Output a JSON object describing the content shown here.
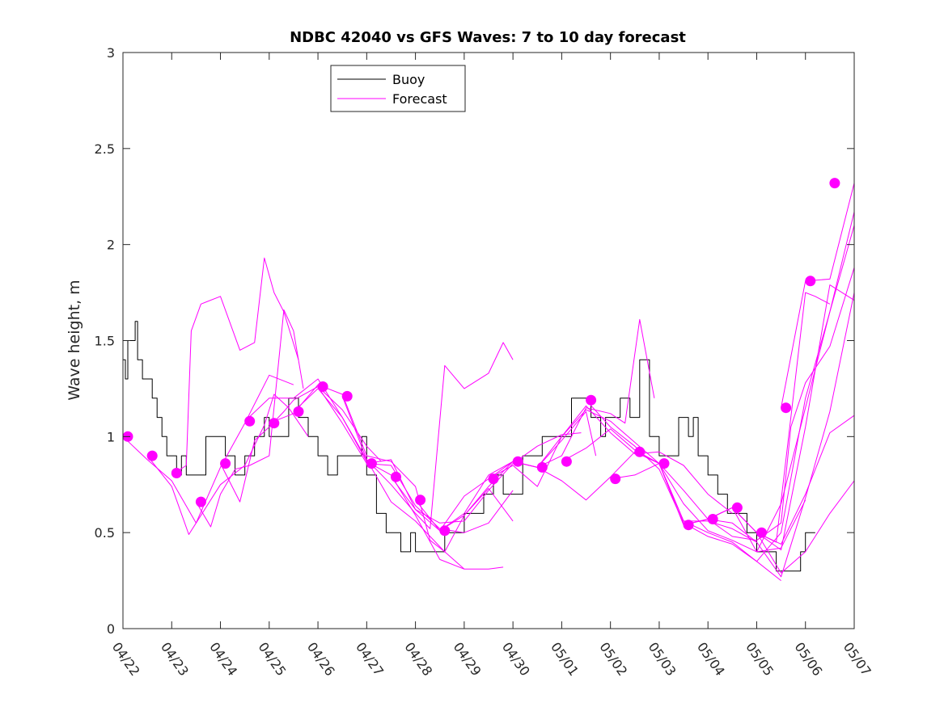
{
  "chart_data": {
    "type": "line",
    "title": "NDBC 42040 vs GFS Waves: 7 to 10 day forecast",
    "xlabel": "",
    "ylabel": "Wave height, m",
    "ylim": [
      0,
      3
    ],
    "yticks": [
      "0",
      "0.5",
      "1",
      "1.5",
      "2",
      "2.5",
      "3"
    ],
    "xlim": [
      0,
      15
    ],
    "xticks": [
      "04/22",
      "04/23",
      "04/24",
      "04/25",
      "04/26",
      "04/27",
      "04/28",
      "04/29",
      "04/30",
      "05/01",
      "05/02",
      "05/03",
      "05/04",
      "05/05",
      "05/06",
      "05/07"
    ],
    "x_unit": "days since 04/22",
    "grid": false,
    "legend_position": "top-left",
    "legend": [
      {
        "label": "Buoy",
        "color": "#000000"
      },
      {
        "label": "Forecast",
        "color": "#ff00ff"
      }
    ],
    "series": [
      {
        "name": "Buoy",
        "color": "#000000",
        "step": true,
        "x": [
          0,
          0.05,
          0.1,
          0.2,
          0.25,
          0.3,
          0.35,
          0.4,
          0.5,
          0.6,
          0.7,
          0.8,
          0.9,
          1.0,
          1.1,
          1.2,
          1.3,
          1.5,
          1.7,
          1.9,
          2.1,
          2.3,
          2.5,
          2.7,
          2.9,
          3.0,
          3.2,
          3.4,
          3.6,
          3.8,
          4.0,
          4.2,
          4.4,
          4.5,
          4.7,
          4.9,
          5.0,
          5.2,
          5.4,
          5.5,
          5.7,
          5.9,
          6.0,
          6.1,
          6.2,
          6.3,
          6.4,
          6.6,
          6.8,
          7.0,
          7.2,
          7.4,
          7.6,
          7.8,
          8.0,
          8.2,
          8.4,
          8.6,
          8.8,
          9.0,
          9.2,
          9.4,
          9.6,
          9.7,
          9.8,
          9.9,
          10.0,
          10.2,
          10.4,
          10.6,
          10.8,
          11.0,
          11.2,
          11.4,
          11.6,
          11.7,
          11.8,
          11.9,
          12.0,
          12.2,
          12.4,
          12.6,
          12.8,
          13.0,
          13.2,
          13.4,
          13.6,
          13.8,
          13.9,
          14.0,
          14.2
        ],
        "y": [
          1.4,
          1.3,
          1.5,
          1.5,
          1.6,
          1.4,
          1.4,
          1.3,
          1.3,
          1.2,
          1.1,
          1.0,
          0.9,
          0.9,
          0.8,
          0.9,
          0.8,
          0.8,
          1.0,
          1.0,
          0.9,
          0.8,
          0.9,
          1.0,
          1.1,
          1.0,
          1.0,
          1.2,
          1.1,
          1.0,
          0.9,
          0.8,
          0.9,
          0.9,
          0.9,
          1.0,
          0.8,
          0.6,
          0.5,
          0.5,
          0.4,
          0.5,
          0.4,
          0.4,
          0.4,
          0.4,
          0.4,
          0.5,
          0.5,
          0.6,
          0.6,
          0.7,
          0.8,
          0.7,
          0.7,
          0.9,
          0.9,
          1.0,
          1.0,
          1.0,
          1.2,
          1.2,
          1.1,
          1.1,
          1.0,
          1.1,
          1.1,
          1.2,
          1.1,
          1.4,
          1.0,
          0.9,
          0.9,
          1.1,
          1.0,
          1.1,
          0.9,
          0.9,
          0.8,
          0.7,
          0.6,
          0.6,
          0.5,
          0.4,
          0.4,
          0.3,
          0.3,
          0.3,
          0.4,
          0.5,
          0.5
        ]
      },
      {
        "name": "Forecast",
        "color": "#ff00ff",
        "x": [
          0,
          0.5,
          1.0,
          1.5,
          2.0,
          2.5,
          3.0,
          3.5
        ],
        "y": [
          1.0,
          0.88,
          0.77,
          0.55,
          0.84,
          1.07,
          1.32,
          1.27
        ]
      },
      {
        "name": "Forecast",
        "color": "#ff00ff",
        "x": [
          0.5,
          1.0,
          1.35,
          1.5,
          2.0,
          2.5,
          2.9,
          3.1,
          3.4,
          3.8
        ],
        "y": [
          0.9,
          0.74,
          0.49,
          0.55,
          0.75,
          0.85,
          1.06,
          1.22,
          1.15,
          1.0
        ]
      },
      {
        "name": "Forecast",
        "color": "#ff00ff",
        "x": [
          1.0,
          1.3,
          1.4,
          1.6,
          2.0,
          2.4,
          2.7,
          2.9,
          3.1,
          3.3,
          3.6
        ],
        "y": [
          0.8,
          0.85,
          1.55,
          1.69,
          1.73,
          1.45,
          1.49,
          1.93,
          1.75,
          1.65,
          1.4
        ]
      },
      {
        "name": "Forecast",
        "color": "#ff00ff",
        "x": [
          1.5,
          1.8,
          2.0,
          2.3,
          2.6,
          3.0,
          3.3,
          3.5,
          3.7
        ],
        "y": [
          0.66,
          0.53,
          0.7,
          0.83,
          0.85,
          0.9,
          1.66,
          1.55,
          1.25
        ]
      },
      {
        "name": "Forecast",
        "color": "#ff00ff",
        "x": [
          2.0,
          2.4,
          2.7,
          3.0,
          3.3,
          3.5,
          4.0,
          4.5,
          5.0,
          5.3
        ],
        "y": [
          0.86,
          0.66,
          0.98,
          1.05,
          1.13,
          1.19,
          1.26,
          1.14,
          0.95,
          0.87
        ]
      },
      {
        "name": "Forecast",
        "color": "#ff00ff",
        "x": [
          2.5,
          3.0,
          3.5,
          4.0,
          4.5,
          5.0,
          5.5,
          6.0,
          6.3,
          6.6,
          7.0
        ],
        "y": [
          1.08,
          1.2,
          1.2,
          1.3,
          1.1,
          0.88,
          0.66,
          0.56,
          0.48,
          0.4,
          0.31
        ]
      },
      {
        "name": "Forecast",
        "color": "#ff00ff",
        "x": [
          3.0,
          3.5,
          4.0,
          4.5,
          5.0,
          5.5,
          6.0,
          6.3,
          6.6,
          7.0,
          7.5,
          8.0
        ],
        "y": [
          1.07,
          1.12,
          1.27,
          1.22,
          0.9,
          0.87,
          0.74,
          0.46,
          0.4,
          0.59,
          0.73,
          0.56
        ]
      },
      {
        "name": "Forecast",
        "color": "#ff00ff",
        "x": [
          3.5,
          4.0,
          4.5,
          5.0,
          5.5,
          6.0,
          6.5,
          7.0,
          7.5,
          7.8
        ],
        "y": [
          1.13,
          1.25,
          1.1,
          0.87,
          0.8,
          0.59,
          0.36,
          0.31,
          0.31,
          0.32
        ]
      },
      {
        "name": "Forecast",
        "color": "#ff00ff",
        "x": [
          4.0,
          4.5,
          5.0,
          5.5,
          6.0,
          6.5,
          7.0,
          7.5,
          8.0
        ],
        "y": [
          1.26,
          1.07,
          0.86,
          0.85,
          0.64,
          0.52,
          0.5,
          0.55,
          0.72
        ]
      },
      {
        "name": "Forecast",
        "color": "#ff00ff",
        "x": [
          4.5,
          5.0,
          5.5,
          6.0,
          6.3,
          6.6,
          7.0,
          7.5,
          7.8,
          8.0
        ],
        "y": [
          1.21,
          0.88,
          0.75,
          0.6,
          0.52,
          1.37,
          1.25,
          1.33,
          1.49,
          1.4
        ]
      },
      {
        "name": "Forecast",
        "color": "#ff00ff",
        "x": [
          5.0,
          5.5,
          6.0,
          6.5,
          7.0,
          7.5,
          8.0,
          8.5,
          9.0,
          9.4
        ],
        "y": [
          0.86,
          0.88,
          0.62,
          0.55,
          0.56,
          0.72,
          0.86,
          0.95,
          1.01,
          1.02
        ]
      },
      {
        "name": "Forecast",
        "color": "#ff00ff",
        "x": [
          5.5,
          6.0,
          6.5,
          7.0,
          7.5,
          8.0,
          8.5,
          9.0,
          9.5,
          9.7
        ],
        "y": [
          0.79,
          0.62,
          0.51,
          0.6,
          0.8,
          0.87,
          0.84,
          0.98,
          1.13,
          0.9
        ]
      },
      {
        "name": "Forecast",
        "color": "#ff00ff",
        "x": [
          6.0,
          6.5,
          7.0,
          7.5,
          8.0,
          8.5,
          9.0,
          9.5,
          10.0,
          10.3,
          10.6,
          10.9
        ],
        "y": [
          0.67,
          0.51,
          0.59,
          0.74,
          0.87,
          0.84,
          0.9,
          1.15,
          1.12,
          1.07,
          1.61,
          1.2
        ]
      },
      {
        "name": "Forecast",
        "color": "#ff00ff",
        "x": [
          6.5,
          7.0,
          7.5,
          8.0,
          8.5,
          9.0,
          9.5,
          10.0,
          10.5,
          11.0,
          11.5,
          12.0,
          12.5
        ],
        "y": [
          0.51,
          0.69,
          0.78,
          0.85,
          0.74,
          1.0,
          1.16,
          1.02,
          0.91,
          0.92,
          0.85,
          0.7,
          0.6
        ]
      },
      {
        "name": "Forecast",
        "color": "#ff00ff",
        "x": [
          7.5,
          8.0,
          8.5,
          9.0,
          9.5,
          10.0,
          10.5,
          11.0,
          11.5,
          12.0,
          12.5,
          13.0
        ],
        "y": [
          0.78,
          0.87,
          0.84,
          1.0,
          1.14,
          1.08,
          0.97,
          0.86,
          0.72,
          0.57,
          0.55,
          0.45
        ]
      },
      {
        "name": "Forecast",
        "color": "#ff00ff",
        "x": [
          8.0,
          8.5,
          9.0,
          9.5,
          10.0,
          10.5,
          11.0,
          11.5,
          12.0,
          12.5,
          13.0,
          13.5
        ],
        "y": [
          0.87,
          0.84,
          0.77,
          0.67,
          0.79,
          0.92,
          0.86,
          0.56,
          0.5,
          0.45,
          0.35,
          0.25
        ]
      },
      {
        "name": "Forecast",
        "color": "#ff00ff",
        "x": [
          9.0,
          9.5,
          10.0,
          10.5,
          11.0,
          11.5,
          12.0,
          12.5,
          13.0,
          13.5,
          14.0
        ],
        "y": [
          0.87,
          0.94,
          1.04,
          0.93,
          0.86,
          0.65,
          0.51,
          0.46,
          0.4,
          0.42,
          0.67
        ]
      },
      {
        "name": "Forecast",
        "color": "#ff00ff",
        "x": [
          9.5,
          10.0,
          10.5,
          11.0,
          11.5,
          12.0,
          12.5,
          13.0,
          13.5,
          14.0,
          14.5,
          15.0
        ],
        "y": [
          1.19,
          1.05,
          0.95,
          0.83,
          0.55,
          0.48,
          0.44,
          0.35,
          0.5,
          1.2,
          1.65,
          2.1
        ]
      },
      {
        "name": "Forecast",
        "color": "#ff00ff",
        "x": [
          10.0,
          10.5,
          11.0,
          11.5,
          12.0,
          12.5,
          13.0,
          13.5,
          14.0,
          14.5,
          15.0
        ],
        "y": [
          0.78,
          0.8,
          0.86,
          0.56,
          0.56,
          0.52,
          0.45,
          0.27,
          0.68,
          1.13,
          1.75
        ]
      },
      {
        "name": "Forecast",
        "color": "#ff00ff",
        "x": [
          10.5,
          11.0,
          11.5,
          12.0,
          12.5,
          13.0,
          13.4,
          13.7,
          14.0,
          14.2,
          14.5
        ],
        "y": [
          0.92,
          0.86,
          0.54,
          0.57,
          0.63,
          0.5,
          0.45,
          1.1,
          1.75,
          1.73,
          1.69
        ]
      },
      {
        "name": "Forecast",
        "color": "#ff00ff",
        "x": [
          11.0,
          11.5,
          12.0,
          12.5,
          13.0,
          13.5,
          13.7,
          14.0,
          14.5,
          15.0
        ],
        "y": [
          0.86,
          0.54,
          0.57,
          0.48,
          0.46,
          0.55,
          1.05,
          1.28,
          1.47,
          1.88
        ]
      },
      {
        "name": "Forecast",
        "color": "#ff00ff",
        "x": [
          11.5,
          12.0,
          12.5,
          13.0,
          13.5,
          14.0,
          14.5,
          15.0
        ],
        "y": [
          0.54,
          0.57,
          0.63,
          0.4,
          0.65,
          1.15,
          1.65,
          2.17
        ]
      },
      {
        "name": "Forecast",
        "color": "#ff00ff",
        "x": [
          12.0,
          12.5,
          13.0,
          13.5,
          14.0,
          14.5,
          15.0
        ],
        "y": [
          0.57,
          0.63,
          0.5,
          0.44,
          0.7,
          1.02,
          1.11
        ]
      },
      {
        "name": "Forecast",
        "color": "#ff00ff",
        "x": [
          12.5,
          13.0,
          13.5,
          14.0,
          14.5,
          15.0
        ],
        "y": [
          0.63,
          0.5,
          0.29,
          0.4,
          0.6,
          0.77
        ]
      },
      {
        "name": "Forecast",
        "color": "#ff00ff",
        "x": [
          13.0,
          13.5,
          14.0,
          14.5,
          15.0
        ],
        "y": [
          0.5,
          0.41,
          1.05,
          1.79,
          1.71
        ]
      },
      {
        "name": "Forecast",
        "color": "#ff00ff",
        "x": [
          13.5,
          14.0,
          14.5,
          15.0
        ],
        "y": [
          1.15,
          1.81,
          1.82,
          2.32
        ]
      }
    ],
    "markers": {
      "color": "#ff00ff",
      "x": [
        0.1,
        0.6,
        1.1,
        1.6,
        2.1,
        2.6,
        3.1,
        3.6,
        4.1,
        4.6,
        5.1,
        5.6,
        6.1,
        6.6,
        7.6,
        8.1,
        8.6,
        9.1,
        9.6,
        10.1,
        10.6,
        11.1,
        11.6,
        12.1,
        12.6,
        13.1,
        13.6,
        14.1,
        14.6
      ],
      "y": [
        1.0,
        0.9,
        0.81,
        0.66,
        0.86,
        1.08,
        1.07,
        1.13,
        1.26,
        1.21,
        0.86,
        0.79,
        0.67,
        0.51,
        0.78,
        0.87,
        0.84,
        0.87,
        1.19,
        0.78,
        0.92,
        0.86,
        0.54,
        0.57,
        0.63,
        0.5,
        1.15,
        1.81,
        2.32
      ]
    }
  }
}
